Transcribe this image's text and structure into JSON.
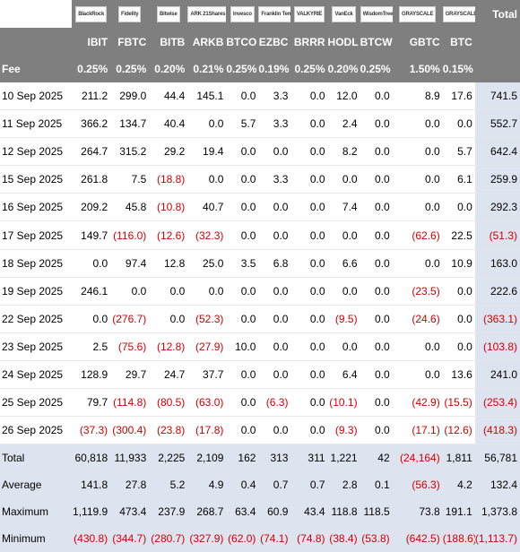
{
  "header": {
    "logos": [
      "BlackRock",
      "Fidelity",
      "Bitwise",
      "ARK 21Shares",
      "Invesco",
      "Franklin Templeton",
      "VALKYRIE",
      "VanEck",
      "WisdomTree",
      "GRAYSCALE",
      "GRAYSCALE"
    ],
    "total_label": "Total",
    "tickers": [
      "IBIT",
      "FBTC",
      "BITB",
      "ARKB",
      "BTCO",
      "EZBC",
      "BRRR",
      "HODL",
      "BTCW",
      "GBTC",
      "BTC"
    ],
    "fee_label": "Fee",
    "fees": [
      "0.25%",
      "0.25%",
      "0.20%",
      "0.21%",
      "0.25%",
      "0.19%",
      "0.25%",
      "0.20%",
      "0.25%",
      "1.50%",
      "0.15%"
    ]
  },
  "rows": [
    {
      "date": "10 Sep 2025",
      "values": [
        "211.2",
        "299.0",
        "44.4",
        "145.1",
        "0.0",
        "3.3",
        "0.0",
        "12.0",
        "0.0",
        "8.9",
        "17.6"
      ],
      "total": "741.5"
    },
    {
      "date": "11 Sep 2025",
      "values": [
        "366.2",
        "134.7",
        "40.4",
        "0.0",
        "5.7",
        "3.3",
        "0.0",
        "2.4",
        "0.0",
        "0.0",
        "0.0"
      ],
      "total": "552.7"
    },
    {
      "date": "12 Sep 2025",
      "values": [
        "264.7",
        "315.2",
        "29.2",
        "19.4",
        "0.0",
        "0.0",
        "0.0",
        "8.2",
        "0.0",
        "0.0",
        "5.7"
      ],
      "total": "642.4"
    },
    {
      "date": "15 Sep 2025",
      "values": [
        "261.8",
        "7.5",
        "(18.8)",
        "0.0",
        "0.0",
        "3.3",
        "0.0",
        "0.0",
        "0.0",
        "0.0",
        "6.1"
      ],
      "total": "259.9"
    },
    {
      "date": "16 Sep 2025",
      "values": [
        "209.2",
        "45.8",
        "(10.8)",
        "40.7",
        "0.0",
        "0.0",
        "0.0",
        "7.4",
        "0.0",
        "0.0",
        "0.0"
      ],
      "total": "292.3"
    },
    {
      "date": "17 Sep 2025",
      "values": [
        "149.7",
        "(116.0)",
        "(12.6)",
        "(32.3)",
        "0.0",
        "0.0",
        "0.0",
        "0.0",
        "0.0",
        "(62.6)",
        "22.5"
      ],
      "total": "(51.3)"
    },
    {
      "date": "18 Sep 2025",
      "values": [
        "0.0",
        "97.4",
        "12.8",
        "25.0",
        "3.5",
        "6.8",
        "0.0",
        "6.6",
        "0.0",
        "0.0",
        "10.9"
      ],
      "total": "163.0"
    },
    {
      "date": "19 Sep 2025",
      "values": [
        "246.1",
        "0.0",
        "0.0",
        "0.0",
        "0.0",
        "0.0",
        "0.0",
        "0.0",
        "0.0",
        "(23.5)",
        "0.0"
      ],
      "total": "222.6"
    },
    {
      "date": "22 Sep 2025",
      "values": [
        "0.0",
        "(276.7)",
        "0.0",
        "(52.3)",
        "0.0",
        "0.0",
        "0.0",
        "(9.5)",
        "0.0",
        "(24.6)",
        "0.0"
      ],
      "total": "(363.1)"
    },
    {
      "date": "23 Sep 2025",
      "values": [
        "2.5",
        "(75.6)",
        "(12.8)",
        "(27.9)",
        "10.0",
        "0.0",
        "0.0",
        "0.0",
        "0.0",
        "0.0",
        "0.0"
      ],
      "total": "(103.8)"
    },
    {
      "date": "24 Sep 2025",
      "values": [
        "128.9",
        "29.7",
        "24.7",
        "37.7",
        "0.0",
        "0.0",
        "0.0",
        "6.4",
        "0.0",
        "0.0",
        "13.6"
      ],
      "total": "241.0"
    },
    {
      "date": "25 Sep 2025",
      "values": [
        "79.7",
        "(114.8)",
        "(80.5)",
        "(63.0)",
        "0.0",
        "(6.3)",
        "0.0",
        "(10.1)",
        "0.0",
        "(42.9)",
        "(15.5)"
      ],
      "total": "(253.4)"
    },
    {
      "date": "26 Sep 2025",
      "values": [
        "(37.3)",
        "(300.4)",
        "(23.8)",
        "(17.8)",
        "0.0",
        "0.0",
        "0.0",
        "(9.3)",
        "0.0",
        "(17.1)",
        "(12.6)"
      ],
      "total": "(418.3)"
    }
  ],
  "stats": [
    {
      "label": "Total",
      "values": [
        "60,818",
        "11,933",
        "2,225",
        "2,109",
        "162",
        "313",
        "311",
        "1,221",
        "42",
        "(24,164)",
        "1,811"
      ],
      "total": "56,781"
    },
    {
      "label": "Average",
      "values": [
        "141.8",
        "27.8",
        "5.2",
        "4.9",
        "0.4",
        "0.7",
        "0.7",
        "2.8",
        "0.1",
        "(56.3)",
        "4.2"
      ],
      "total": "132.4"
    },
    {
      "label": "Maximum",
      "values": [
        "1,119.9",
        "473.4",
        "237.9",
        "268.7",
        "63.4",
        "60.9",
        "43.4",
        "118.8",
        "118.5",
        "73.8",
        "191.1"
      ],
      "total": "1,373.8"
    },
    {
      "label": "Minimum",
      "values": [
        "(430.8)",
        "(344.7)",
        "(280.7)",
        "(327.9)",
        "(62.0)",
        "(74.1)",
        "(74.8)",
        "(38.4)",
        "(53.8)",
        "(642.5)",
        "(188.6)"
      ],
      "total": "(1,113.7)"
    }
  ]
}
